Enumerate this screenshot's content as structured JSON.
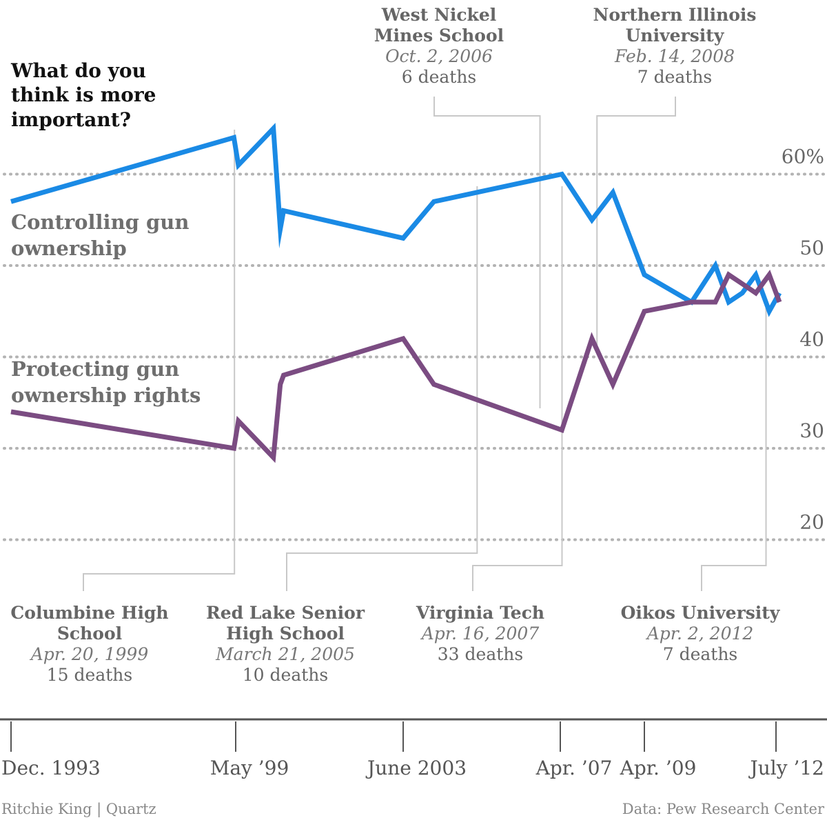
{
  "chart_data": {
    "type": "line",
    "title": "What do you think is more important?",
    "y_axis": {
      "ylim": [
        14,
        68
      ],
      "ticks": [
        20,
        30,
        40,
        50,
        60
      ],
      "tick_labels": [
        "20",
        "30",
        "40",
        "50",
        "60%"
      ],
      "grid": "dotted"
    },
    "x_axis": {
      "tick_labels": [
        "Dec. 1993",
        "May ’99",
        "June 2003",
        "Apr. ’07",
        "Apr. ’09",
        "July ’12"
      ],
      "tick_dates": [
        "1993-12-01",
        "1999-05-01",
        "2003-06-01",
        "2007-04-01",
        "2009-04-01",
        "2012-07-01"
      ]
    },
    "series": [
      {
        "name": "Controlling gun ownership",
        "color": "#1a8ae5",
        "points": [
          [
            "1993-12-01",
            57
          ],
          [
            "1999-04-15",
            64
          ],
          [
            "1999-05-25",
            61
          ],
          [
            "2000-04-01",
            65
          ],
          [
            "2000-06-01",
            54
          ],
          [
            "2000-07-01",
            56
          ],
          [
            "2003-06-01",
            53
          ],
          [
            "2004-03-01",
            57
          ],
          [
            "2007-04-15",
            60
          ],
          [
            "2008-01-01",
            55
          ],
          [
            "2008-07-01",
            58
          ],
          [
            "2009-04-01",
            49
          ],
          [
            "2010-06-01",
            46
          ],
          [
            "2011-01-01",
            50
          ],
          [
            "2011-05-01",
            46
          ],
          [
            "2011-09-01",
            47
          ],
          [
            "2012-01-01",
            49
          ],
          [
            "2012-05-01",
            45
          ],
          [
            "2012-08-01",
            47
          ]
        ]
      },
      {
        "name": "Protecting gun ownership rights",
        "color": "#7b4c82",
        "points": [
          [
            "1993-12-01",
            34
          ],
          [
            "1999-04-15",
            30
          ],
          [
            "1999-05-25",
            33
          ],
          [
            "2000-04-01",
            29
          ],
          [
            "2000-06-01",
            37
          ],
          [
            "2000-07-01",
            38
          ],
          [
            "2003-06-01",
            42
          ],
          [
            "2004-03-01",
            37
          ],
          [
            "2007-04-15",
            32
          ],
          [
            "2008-01-01",
            42
          ],
          [
            "2008-07-01",
            37
          ],
          [
            "2009-04-01",
            45
          ],
          [
            "2010-06-01",
            46
          ],
          [
            "2011-01-01",
            46
          ],
          [
            "2011-05-01",
            49
          ],
          [
            "2011-09-01",
            48
          ],
          [
            "2012-01-01",
            47
          ],
          [
            "2012-05-01",
            49
          ],
          [
            "2012-08-01",
            46
          ]
        ]
      }
    ],
    "annotations": [
      {
        "name_lines": [
          "West Nickel",
          "Mines School"
        ],
        "date": "Oct. 2, 2006",
        "deaths": "6 deaths",
        "event_date": "2006-10-02",
        "position": "top"
      },
      {
        "name_lines": [
          "Northern Illinois",
          "University"
        ],
        "date": "Feb. 14, 2008",
        "deaths": "7 deaths",
        "event_date": "2008-02-14",
        "position": "top"
      },
      {
        "name_lines": [
          "Columbine High",
          "School"
        ],
        "date": "Apr. 20, 1999",
        "deaths": "15 deaths",
        "event_date": "1999-04-20",
        "position": "bottom"
      },
      {
        "name_lines": [
          "Red Lake Senior",
          "High School"
        ],
        "date": "March 21, 2005",
        "deaths": "10 deaths",
        "event_date": "2005-03-21",
        "position": "bottom"
      },
      {
        "name_lines": [
          "Virginia Tech"
        ],
        "date": "Apr. 16, 2007",
        "deaths": "33 deaths",
        "event_date": "2007-04-16",
        "position": "bottom"
      },
      {
        "name_lines": [
          "Oikos University"
        ],
        "date": "Apr. 2, 2012",
        "deaths": "7 deaths",
        "event_date": "2012-04-02",
        "position": "bottom"
      }
    ]
  },
  "title_lines": [
    "What do you",
    "think is more",
    "important?"
  ],
  "series_labels": {
    "controlling": [
      "Controlling gun",
      "ownership"
    ],
    "protecting": [
      "Protecting gun",
      "ownership rights"
    ]
  },
  "credits": {
    "left": "Ritchie King | Quartz",
    "right": "Data: Pew Research Center"
  }
}
